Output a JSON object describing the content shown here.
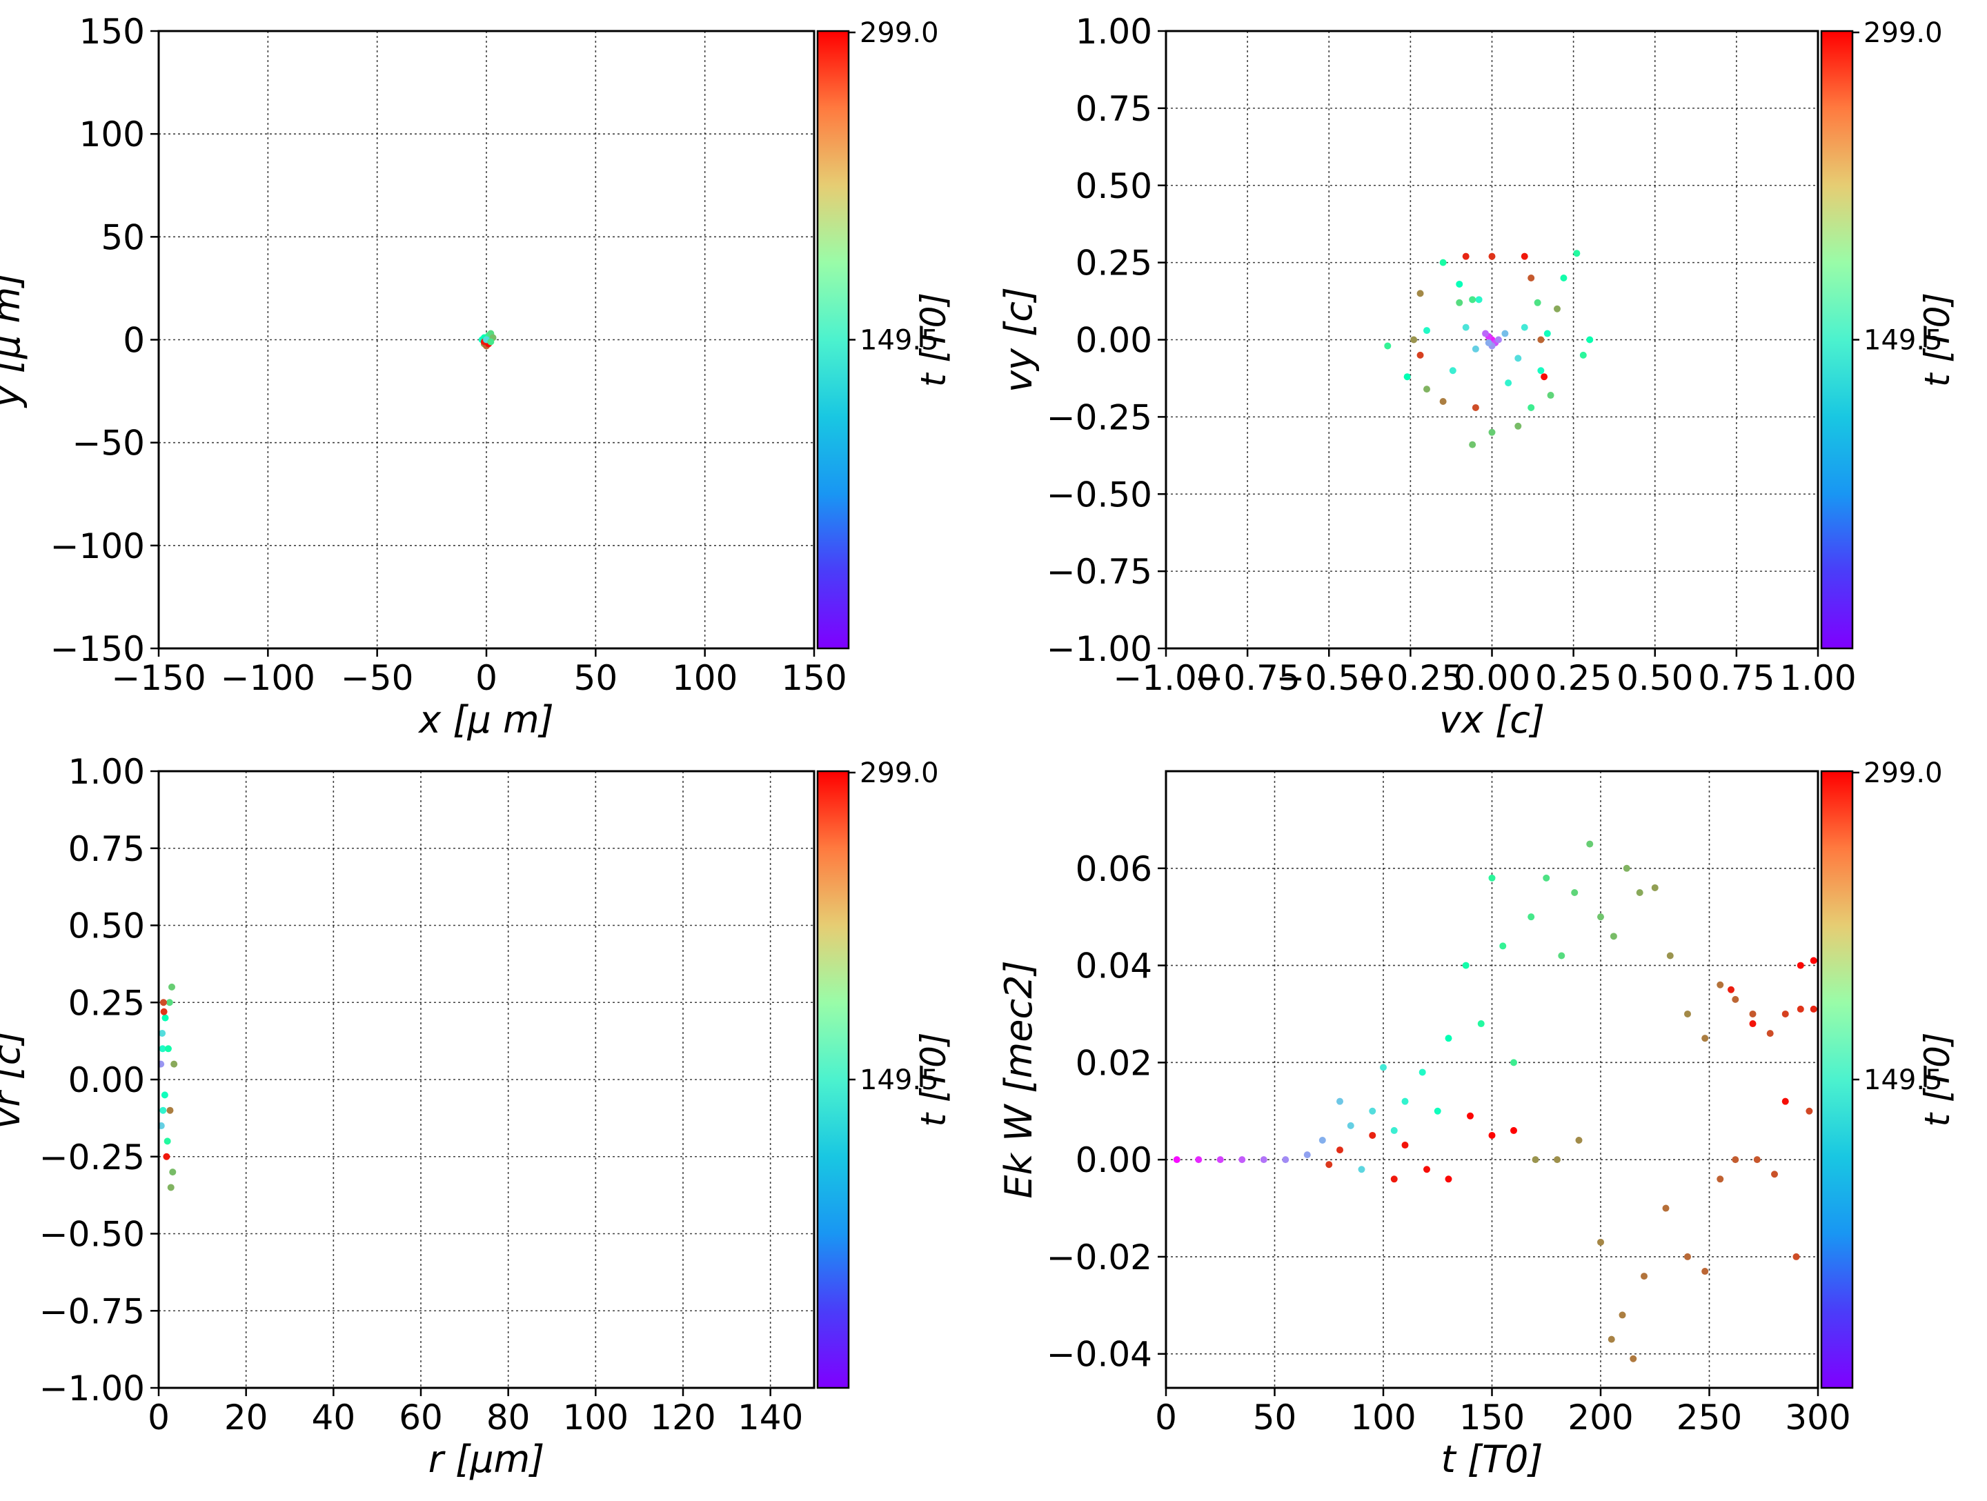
{
  "chart_data": [
    {
      "type": "scatter",
      "panel": "x-y",
      "xlabel": "x  [μ m]",
      "ylabel": "y  [μ m]",
      "xlim": [
        -150,
        150
      ],
      "ylim": [
        -150,
        150
      ],
      "xticks": [
        -150,
        -100,
        -50,
        0,
        50,
        100,
        150
      ],
      "yticks": [
        -150,
        -100,
        -50,
        0,
        50,
        100,
        150
      ],
      "xtick_labels": [
        "−150",
        "−100",
        "−50",
        "0",
        "50",
        "100",
        "150"
      ],
      "ytick_labels": [
        "−150",
        "−100",
        "−50",
        "0",
        "50",
        "100",
        "150"
      ],
      "grid": true,
      "colorbar": {
        "label": "t [T0]",
        "ticks": [
          "299.0",
          "149.5"
        ],
        "range": [
          0,
          299
        ],
        "colormap": "rainbow"
      },
      "points": [
        [
          -2,
          0,
          140
        ],
        [
          -1,
          1,
          150
        ],
        [
          0,
          -1,
          160
        ],
        [
          1,
          2,
          180
        ],
        [
          2,
          3,
          200
        ],
        [
          3,
          1,
          220
        ],
        [
          -1,
          -2,
          240
        ],
        [
          0,
          -3,
          260
        ],
        [
          -1,
          -1,
          290
        ],
        [
          1,
          -2,
          295
        ],
        [
          0,
          0,
          100
        ],
        [
          2,
          -1,
          190
        ]
      ]
    },
    {
      "type": "scatter",
      "panel": "vx-vy",
      "xlabel": "vx [c]",
      "ylabel": "vy [c]",
      "xlim": [
        -1,
        1
      ],
      "ylim": [
        -1,
        1
      ],
      "xticks": [
        -1,
        -0.75,
        -0.5,
        -0.25,
        0,
        0.25,
        0.5,
        0.75,
        1
      ],
      "yticks": [
        -1,
        -0.75,
        -0.5,
        -0.25,
        0,
        0.25,
        0.5,
        0.75,
        1
      ],
      "xtick_labels": [
        "−1.00",
        "−0.75",
        "−0.50",
        "−0.25",
        "0.00",
        "0.25",
        "0.50",
        "0.75",
        "1.00"
      ],
      "ytick_labels": [
        "−1.00",
        "−0.75",
        "−0.50",
        "−0.25",
        "0.00",
        "0.25",
        "0.50",
        "0.75",
        "1.00"
      ],
      "grid": true,
      "colorbar": {
        "label": "t [T0]",
        "ticks": [
          "299.0",
          "149.5"
        ],
        "range": [
          0,
          299
        ],
        "colormap": "rainbow"
      },
      "points": [
        [
          0,
          0,
          10
        ],
        [
          -0.01,
          0.01,
          20
        ],
        [
          0.01,
          -0.01,
          30
        ],
        [
          -0.02,
          0.02,
          40
        ],
        [
          0.02,
          0.0,
          50
        ],
        [
          0.0,
          -0.02,
          60
        ],
        [
          -0.01,
          -0.01,
          70
        ],
        [
          0.04,
          0.02,
          80
        ],
        [
          -0.05,
          -0.03,
          90
        ],
        [
          0.08,
          -0.06,
          100
        ],
        [
          -0.08,
          0.04,
          105
        ],
        [
          0.1,
          0.04,
          110
        ],
        [
          -0.12,
          -0.1,
          115
        ],
        [
          0.05,
          -0.14,
          120
        ],
        [
          -0.04,
          0.13,
          125
        ],
        [
          -0.2,
          0.03,
          130
        ],
        [
          0.15,
          -0.1,
          135
        ],
        [
          0.17,
          0.02,
          140
        ],
        [
          -0.1,
          0.18,
          145
        ],
        [
          -0.26,
          -0.12,
          150
        ],
        [
          0.3,
          0.0,
          155
        ],
        [
          0.22,
          0.2,
          160
        ],
        [
          -0.15,
          0.25,
          165
        ],
        [
          0.26,
          0.28,
          170
        ],
        [
          0.28,
          -0.05,
          175
        ],
        [
          -0.32,
          -0.02,
          180
        ],
        [
          0.12,
          -0.22,
          185
        ],
        [
          -0.06,
          0.13,
          190
        ],
        [
          0.14,
          0.12,
          195
        ],
        [
          -0.1,
          0.12,
          200
        ],
        [
          0.18,
          -0.18,
          205
        ],
        [
          0.0,
          -0.3,
          210
        ],
        [
          -0.06,
          -0.34,
          215
        ],
        [
          0.08,
          -0.28,
          220
        ],
        [
          -0.2,
          -0.16,
          225
        ],
        [
          0.2,
          0.1,
          230
        ],
        [
          -0.24,
          0.0,
          240
        ],
        [
          -0.22,
          0.15,
          245
        ],
        [
          -0.15,
          -0.2,
          250
        ],
        [
          0.15,
          0.0,
          260
        ],
        [
          0.12,
          0.2,
          265
        ],
        [
          -0.05,
          -0.22,
          270
        ],
        [
          -0.22,
          -0.05,
          275
        ],
        [
          0.0,
          0.27,
          280
        ],
        [
          -0.08,
          0.27,
          285
        ],
        [
          0.1,
          0.27,
          290
        ],
        [
          0.16,
          -0.12,
          295
        ]
      ]
    },
    {
      "type": "scatter",
      "panel": "r-vr",
      "xlabel": "r [μm]",
      "ylabel": "vr [c]",
      "xlim": [
        0,
        150
      ],
      "ylim": [
        -1,
        1
      ],
      "xticks": [
        0,
        20,
        40,
        60,
        80,
        100,
        120,
        140
      ],
      "yticks": [
        -1,
        -0.75,
        -0.5,
        -0.25,
        0,
        0.25,
        0.5,
        0.75,
        1
      ],
      "xtick_labels": [
        "0",
        "20",
        "40",
        "60",
        "80",
        "100",
        "120",
        "140"
      ],
      "ytick_labels": [
        "−1.00",
        "−0.75",
        "−0.50",
        "−0.25",
        "0.00",
        "0.25",
        "0.50",
        "0.75",
        "1.00"
      ],
      "grid": true,
      "colorbar": {
        "label": "t [T0]",
        "ticks": [
          "299.0",
          "149.5"
        ],
        "range": [
          0,
          299
        ],
        "colormap": "rainbow"
      },
      "points": [
        [
          0.5,
          0.05,
          60
        ],
        [
          0.8,
          0.15,
          100
        ],
        [
          1.0,
          -0.1,
          120
        ],
        [
          1.5,
          0.2,
          150
        ],
        [
          2.0,
          -0.2,
          170
        ],
        [
          2.5,
          0.25,
          200
        ],
        [
          3.0,
          0.3,
          210
        ],
        [
          3.2,
          -0.3,
          220
        ],
        [
          2.8,
          -0.35,
          225
        ],
        [
          1.2,
          0.22,
          280
        ],
        [
          1.8,
          -0.25,
          290
        ],
        [
          0.9,
          0.1,
          130
        ],
        [
          1.4,
          -0.05,
          140
        ],
        [
          2.2,
          0.1,
          160
        ],
        [
          3.5,
          0.05,
          230
        ],
        [
          1.1,
          0.25,
          270
        ],
        [
          2.6,
          -0.1,
          250
        ],
        [
          0.6,
          -0.15,
          90
        ]
      ]
    },
    {
      "type": "scatter",
      "panel": "t-EkW",
      "xlabel": "t [T0]",
      "ylabel": "Ek W [mec2]",
      "xlim": [
        0,
        300
      ],
      "ylim": [
        -0.047,
        0.08
      ],
      "xticks": [
        0,
        50,
        100,
        150,
        200,
        250,
        300
      ],
      "yticks": [
        -0.04,
        -0.02,
        0,
        0.02,
        0.04,
        0.06
      ],
      "xtick_labels": [
        "0",
        "50",
        "100",
        "150",
        "200",
        "250",
        "300"
      ],
      "ytick_labels": [
        "−0.04",
        "−0.02",
        "0.00",
        "0.02",
        "0.04",
        "0.06"
      ],
      "grid": true,
      "colorbar": {
        "label": "t [T0]",
        "ticks": [
          "299.0",
          "149.5"
        ],
        "range": [
          0,
          299
        ],
        "colormap": "rainbow"
      },
      "points": [
        [
          5,
          0.0,
          5
        ],
        [
          15,
          0.0,
          15
        ],
        [
          25,
          0.0,
          25
        ],
        [
          35,
          0.0,
          35
        ],
        [
          45,
          0.0,
          45
        ],
        [
          55,
          0.0,
          55
        ],
        [
          65,
          0.001,
          65
        ],
        [
          72,
          0.004,
          72
        ],
        [
          80,
          0.012,
          85
        ],
        [
          85,
          0.007,
          90
        ],
        [
          90,
          -0.002,
          95
        ],
        [
          95,
          0.01,
          100
        ],
        [
          100,
          0.019,
          110
        ],
        [
          105,
          0.006,
          115
        ],
        [
          110,
          0.012,
          120
        ],
        [
          118,
          0.018,
          130
        ],
        [
          125,
          0.01,
          140
        ],
        [
          130,
          0.025,
          150
        ],
        [
          138,
          0.04,
          160
        ],
        [
          145,
          0.028,
          170
        ],
        [
          150,
          0.058,
          175
        ],
        [
          155,
          0.044,
          180
        ],
        [
          160,
          0.02,
          185
        ],
        [
          168,
          0.05,
          190
        ],
        [
          175,
          0.058,
          195
        ],
        [
          182,
          0.042,
          200
        ],
        [
          188,
          0.055,
          205
        ],
        [
          195,
          0.065,
          210
        ],
        [
          200,
          0.05,
          215
        ],
        [
          206,
          0.046,
          220
        ],
        [
          212,
          0.06,
          225
        ],
        [
          218,
          0.055,
          230
        ],
        [
          225,
          0.056,
          235
        ],
        [
          232,
          0.042,
          240
        ],
        [
          240,
          0.03,
          245
        ],
        [
          248,
          0.025,
          250
        ],
        [
          255,
          0.036,
          255
        ],
        [
          262,
          0.033,
          260
        ],
        [
          270,
          0.03,
          265
        ],
        [
          278,
          0.026,
          270
        ],
        [
          285,
          0.03,
          275
        ],
        [
          292,
          0.031,
          280
        ],
        [
          298,
          0.031,
          285
        ],
        [
          75,
          -0.001,
          278
        ],
        [
          80,
          0.002,
          282
        ],
        [
          95,
          0.005,
          286
        ],
        [
          105,
          -0.004,
          290
        ],
        [
          110,
          0.003,
          292
        ],
        [
          120,
          -0.002,
          294
        ],
        [
          130,
          -0.004,
          296
        ],
        [
          140,
          0.009,
          297
        ],
        [
          150,
          0.005,
          298
        ],
        [
          160,
          0.006,
          299
        ],
        [
          170,
          0.0,
          240
        ],
        [
          180,
          0.0,
          242
        ],
        [
          190,
          0.004,
          244
        ],
        [
          200,
          -0.017,
          246
        ],
        [
          205,
          -0.037,
          248
        ],
        [
          210,
          -0.032,
          250
        ],
        [
          215,
          -0.041,
          252
        ],
        [
          220,
          -0.024,
          254
        ],
        [
          230,
          -0.01,
          256
        ],
        [
          240,
          -0.02,
          258
        ],
        [
          248,
          -0.023,
          260
        ],
        [
          255,
          -0.004,
          262
        ],
        [
          262,
          0.0,
          264
        ],
        [
          272,
          0.0,
          266
        ],
        [
          280,
          -0.003,
          268
        ],
        [
          290,
          -0.02,
          270
        ],
        [
          296,
          0.01,
          272
        ],
        [
          260,
          0.035,
          288
        ],
        [
          270,
          0.028,
          292
        ],
        [
          285,
          0.012,
          294
        ],
        [
          292,
          0.04,
          296
        ],
        [
          298,
          0.041,
          299
        ]
      ]
    }
  ]
}
